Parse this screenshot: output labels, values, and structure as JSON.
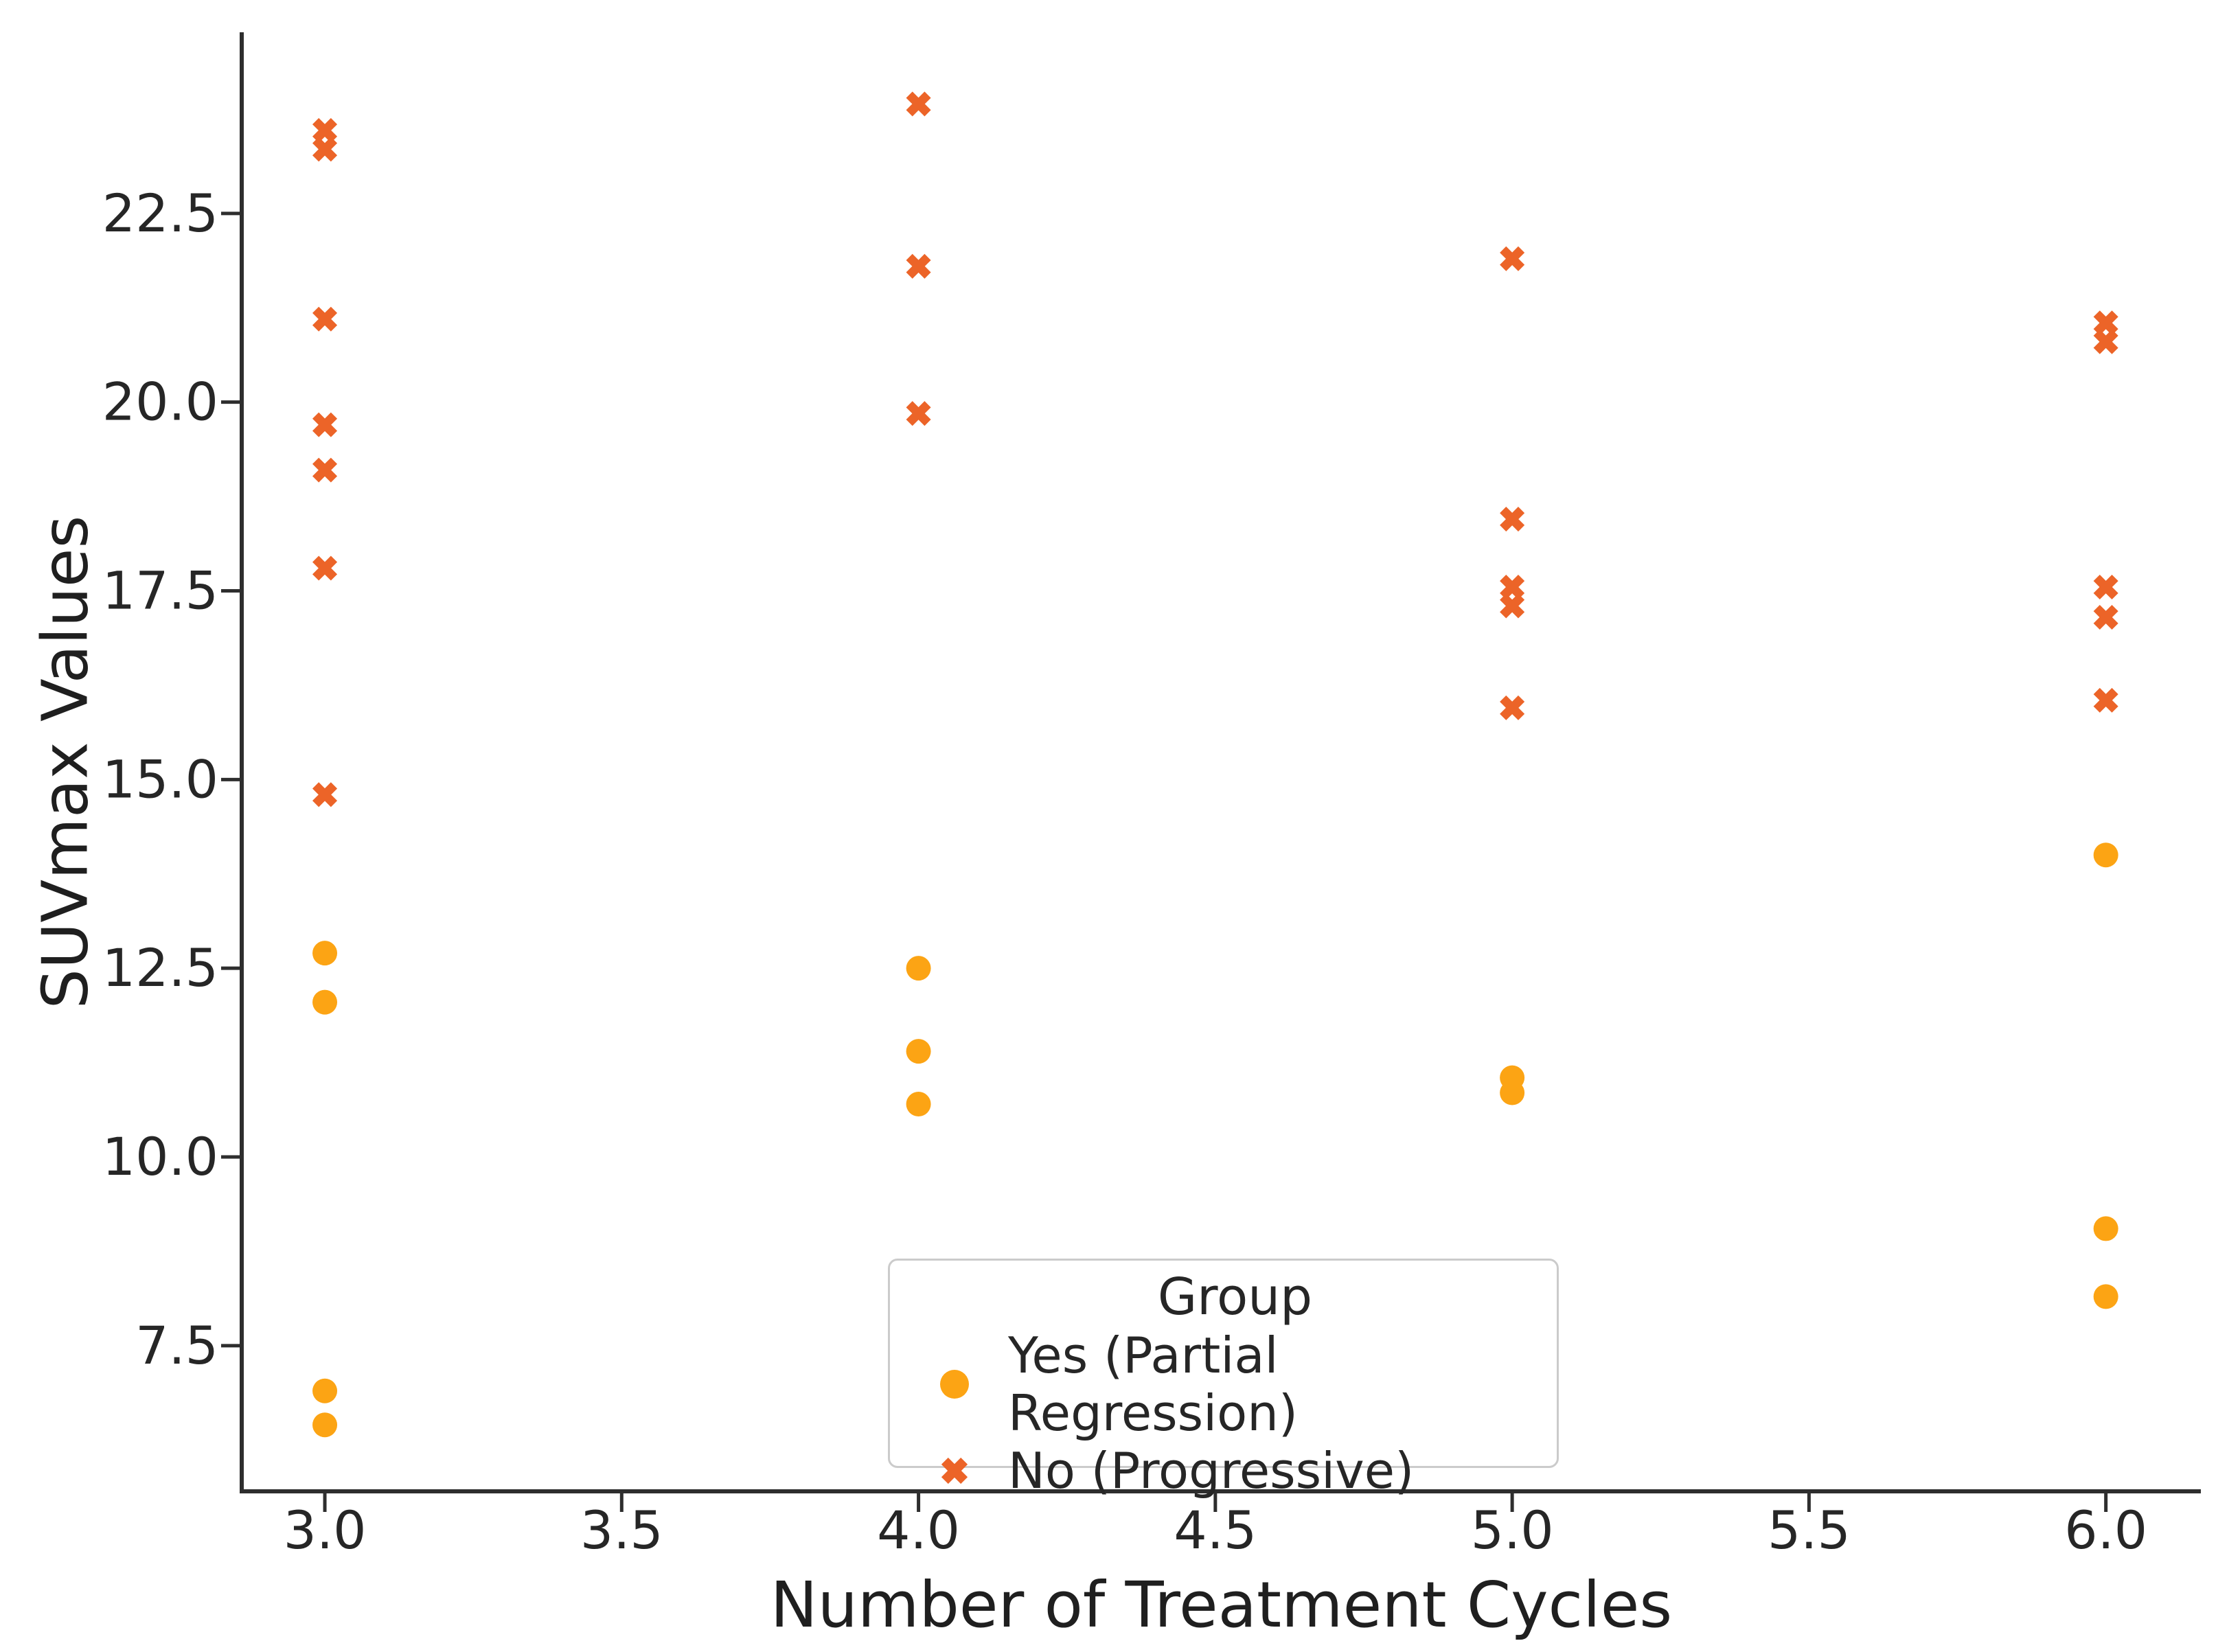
{
  "figure": {
    "background": "#ffffff",
    "text_color": "#262626",
    "spine_color": "#2e2e2e"
  },
  "chart_data": {
    "type": "scatter",
    "title": "",
    "xlabel": "Number of Treatment Cycles",
    "ylabel": "SUVmax Values",
    "xlim": [
      2.86,
      6.16
    ],
    "ylim": [
      5.57,
      24.9
    ],
    "grid": false,
    "xticks": [
      3.0,
      3.5,
      4.0,
      4.5,
      5.0,
      5.5,
      6.0
    ],
    "xtick_labels": [
      "3.0",
      "3.5",
      "4.0",
      "4.5",
      "5.0",
      "5.5",
      "6.0"
    ],
    "yticks": [
      7.5,
      10.0,
      12.5,
      15.0,
      17.5,
      20.0,
      22.5
    ],
    "ytick_labels": [
      "7.5",
      "10.0",
      "12.5",
      "15.0",
      "17.5",
      "20.0",
      "22.5"
    ],
    "legend": {
      "title": "Group",
      "position": "lower center"
    },
    "series": [
      {
        "name": "Yes (Partial Regression)",
        "marker": "circle",
        "color": "#FCA414",
        "points": [
          [
            3,
            12.7
          ],
          [
            3,
            12.05
          ],
          [
            3,
            6.9
          ],
          [
            3,
            6.45
          ],
          [
            4,
            12.5
          ],
          [
            4,
            11.4
          ],
          [
            4,
            10.7
          ],
          [
            5,
            11.05
          ],
          [
            5,
            10.85
          ],
          [
            6,
            14.0
          ],
          [
            6,
            9.05
          ],
          [
            6,
            8.15
          ]
        ]
      },
      {
        "name": "No (Progressive)",
        "marker": "X",
        "color": "#EC6428",
        "points": [
          [
            3,
            23.6
          ],
          [
            3,
            23.35
          ],
          [
            3,
            21.1
          ],
          [
            3,
            19.7
          ],
          [
            3,
            19.1
          ],
          [
            3,
            17.8
          ],
          [
            3,
            14.8
          ],
          [
            4,
            23.95
          ],
          [
            4,
            21.8
          ],
          [
            4,
            19.85
          ],
          [
            5,
            21.9
          ],
          [
            5,
            18.45
          ],
          [
            5,
            17.55
          ],
          [
            5,
            17.3
          ],
          [
            5,
            15.95
          ],
          [
            6,
            21.05
          ],
          [
            6,
            20.8
          ],
          [
            6,
            17.55
          ],
          [
            6,
            17.15
          ],
          [
            6,
            16.05
          ]
        ]
      }
    ]
  }
}
